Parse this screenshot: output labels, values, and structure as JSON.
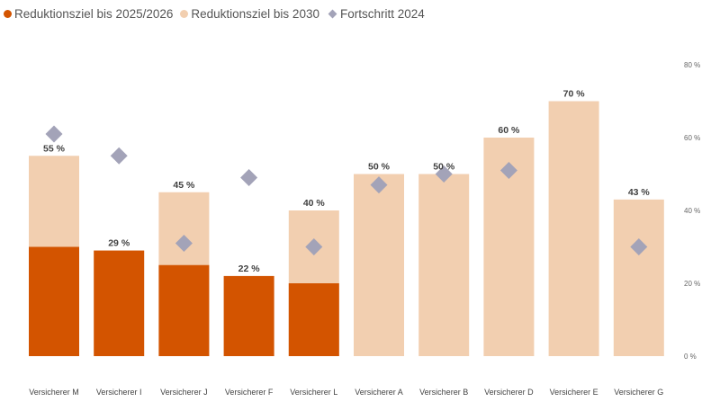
{
  "legend": {
    "items": [
      {
        "label": "Reduktionsziel bis 2025/2026",
        "shape": "circle",
        "color": "#D35400"
      },
      {
        "label": "Reduktionsziel bis 2030",
        "shape": "circle",
        "color": "#F2CFB0"
      },
      {
        "label": "Fortschritt 2024",
        "shape": "diamond",
        "color": "#A3A3B8"
      }
    ]
  },
  "chart_data": {
    "type": "bar",
    "categories": [
      "Versicherer M",
      "Versicherer I",
      "Versicherer J",
      "Versicherer F",
      "Versicherer L",
      "Versicherer A",
      "Versicherer B",
      "Versicherer D",
      "Versicherer E",
      "Versicherer G"
    ],
    "series": [
      {
        "name": "Reduktionsziel bis 2025/2026",
        "kind": "bar",
        "color": "#D35400",
        "values": [
          30,
          29,
          25,
          22,
          20,
          null,
          null,
          null,
          null,
          null
        ]
      },
      {
        "name": "Reduktionsziel bis 2030",
        "kind": "bar",
        "color": "#F2CFB0",
        "values": [
          55,
          null,
          45,
          null,
          40,
          50,
          50,
          60,
          70,
          43
        ]
      },
      {
        "name": "Fortschritt 2024",
        "kind": "marker",
        "color": "#A3A3B8",
        "values": [
          61,
          55,
          31,
          49,
          30,
          47,
          50,
          51,
          null,
          30
        ]
      }
    ],
    "data_labels": [
      "55 %",
      "29 %",
      "45 %",
      "22 %",
      "40 %",
      "50 %",
      "50 %",
      "60 %",
      "70 %",
      "43 %"
    ],
    "y_axis": {
      "position": "right",
      "ticks": [
        0,
        20,
        40,
        60,
        80
      ],
      "tick_labels": [
        "0 %",
        "20 %",
        "40 %",
        "60 %",
        "80 %"
      ],
      "range": [
        0,
        80
      ]
    },
    "grid": false,
    "legend_position": "top-left"
  }
}
